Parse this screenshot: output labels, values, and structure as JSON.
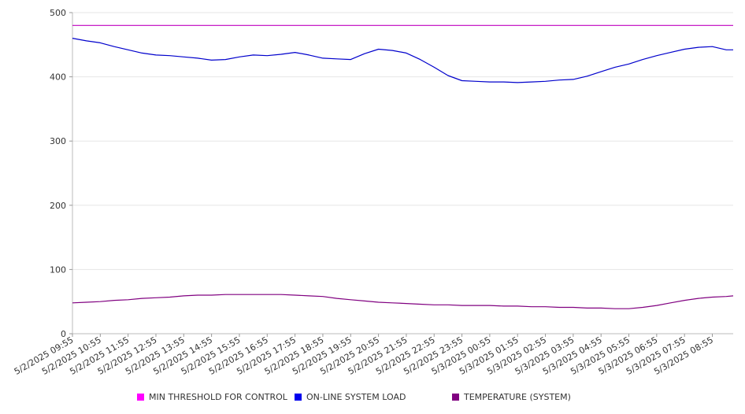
{
  "chart_data": {
    "type": "line",
    "title": "",
    "xlabel": "",
    "ylabel": "",
    "ylim": [
      0,
      500
    ],
    "y_ticks": [
      0,
      100,
      200,
      300,
      400,
      500
    ],
    "grid": "horizontal",
    "legend_position": "bottom",
    "x_tick_labels": [
      "5/2/2025 09:55",
      "5/2/2025 10:55",
      "5/2/2025 11:55",
      "5/2/2025 12:55",
      "5/2/2025 13:55",
      "5/2/2025 14:55",
      "5/2/2025 15:55",
      "5/2/2025 16:55",
      "5/2/2025 17:55",
      "5/2/2025 18:55",
      "5/2/2025 19:55",
      "5/2/2025 20:55",
      "5/2/2025 21:55",
      "5/2/2025 22:55",
      "5/2/2025 23:55",
      "5/3/2025 00:55",
      "5/3/2025 01:55",
      "5/3/2025 02:55",
      "5/3/2025 03:55",
      "5/3/2025 04:55",
      "5/3/2025 05:55",
      "5/3/2025 06:55",
      "5/3/2025 07:55",
      "5/3/2025 08:55"
    ],
    "x": [
      "5/2/2025 09:55",
      "5/2/2025 10:25",
      "5/2/2025 10:55",
      "5/2/2025 11:25",
      "5/2/2025 11:55",
      "5/2/2025 12:25",
      "5/2/2025 12:55",
      "5/2/2025 13:25",
      "5/2/2025 13:55",
      "5/2/2025 14:25",
      "5/2/2025 14:55",
      "5/2/2025 15:25",
      "5/2/2025 15:55",
      "5/2/2025 16:25",
      "5/2/2025 16:55",
      "5/2/2025 17:25",
      "5/2/2025 17:55",
      "5/2/2025 18:25",
      "5/2/2025 18:55",
      "5/2/2025 19:25",
      "5/2/2025 19:55",
      "5/2/2025 20:25",
      "5/2/2025 20:55",
      "5/2/2025 21:25",
      "5/2/2025 21:55",
      "5/2/2025 22:25",
      "5/2/2025 22:55",
      "5/2/2025 23:25",
      "5/2/2025 23:55",
      "5/3/2025 00:25",
      "5/3/2025 00:55",
      "5/3/2025 01:25",
      "5/3/2025 01:55",
      "5/3/2025 02:25",
      "5/3/2025 02:55",
      "5/3/2025 03:25",
      "5/3/2025 03:55",
      "5/3/2025 04:25",
      "5/3/2025 04:55",
      "5/3/2025 05:25",
      "5/3/2025 05:55",
      "5/3/2025 06:25",
      "5/3/2025 06:55",
      "5/3/2025 07:25",
      "5/3/2025 07:55",
      "5/3/2025 08:25",
      "5/3/2025 08:55",
      "5/3/2025 09:25",
      "5/3/2025 09:40"
    ],
    "series": [
      {
        "name": "MIN THRESHOLD FOR CONTROL",
        "color": "#c000c0",
        "values": [
          480,
          480,
          480,
          480,
          480,
          480,
          480,
          480,
          480,
          480,
          480,
          480,
          480,
          480,
          480,
          480,
          480,
          480,
          480,
          480,
          480,
          480,
          480,
          480,
          480,
          480,
          480,
          480,
          480,
          480,
          480,
          480,
          480,
          480,
          480,
          480,
          480,
          480,
          480,
          480,
          480,
          480,
          480,
          480,
          480,
          480,
          480,
          480,
          480
        ]
      },
      {
        "name": "ON-LINE SYSTEM LOAD",
        "color": "#0000cc",
        "values": [
          460,
          456,
          453,
          447,
          442,
          437,
          434,
          433,
          431,
          429,
          426,
          427,
          431,
          434,
          433,
          435,
          438,
          434,
          429,
          428,
          427,
          436,
          443,
          441,
          437,
          427,
          415,
          402,
          394,
          393,
          392,
          392,
          391,
          392,
          393,
          395,
          396,
          401,
          408,
          415,
          420,
          427,
          433,
          438,
          443,
          446,
          447,
          442,
          442
        ]
      },
      {
        "name": "TEMPERATURE (SYSTEM)",
        "color": "#800080",
        "values": [
          48,
          49,
          50,
          52,
          53,
          55,
          56,
          57,
          59,
          60,
          60,
          61,
          61,
          61,
          61,
          61,
          60,
          59,
          58,
          55,
          53,
          51,
          49,
          48,
          47,
          46,
          45,
          45,
          44,
          44,
          44,
          43,
          43,
          42,
          42,
          41,
          41,
          40,
          40,
          39,
          39,
          41,
          44,
          48,
          52,
          55,
          57,
          58,
          59
        ]
      }
    ]
  },
  "legend": {
    "items": [
      {
        "label": "MIN THRESHOLD FOR CONTROL",
        "color": "#ff00ff"
      },
      {
        "label": "ON-LINE SYSTEM LOAD",
        "color": "#0000ee"
      },
      {
        "label": "TEMPERATURE (SYSTEM)",
        "color": "#800080"
      }
    ]
  }
}
